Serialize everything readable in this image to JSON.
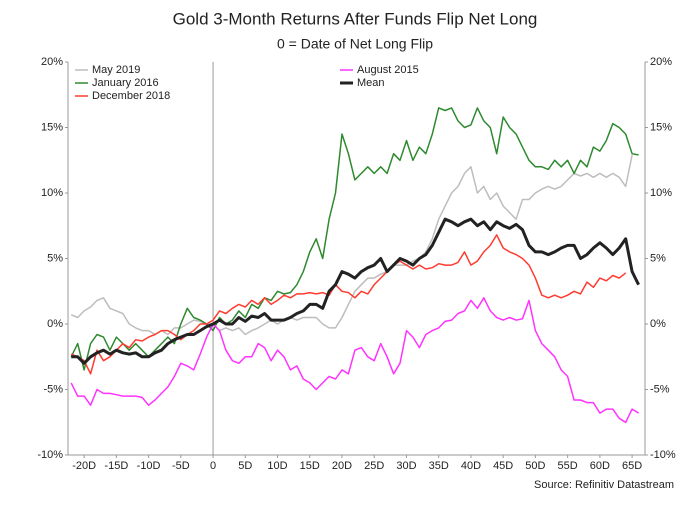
{
  "chart_data": {
    "type": "line",
    "title": "Gold 3-Month Returns After Funds Flip Net Long",
    "subtitle": "0 = Date of Net Long Flip",
    "source": "Source: Refinitiv Datastream",
    "x": [
      -22,
      -21,
      -20,
      -19,
      -18,
      -17,
      -16,
      -15,
      -14,
      -13,
      -12,
      -11,
      -10,
      -9,
      -8,
      -7,
      -6,
      -5,
      -4,
      -3,
      -2,
      -1,
      0,
      1,
      2,
      3,
      4,
      5,
      6,
      7,
      8,
      9,
      10,
      11,
      12,
      13,
      14,
      15,
      16,
      17,
      18,
      19,
      20,
      21,
      22,
      23,
      24,
      25,
      26,
      27,
      28,
      29,
      30,
      31,
      32,
      33,
      34,
      35,
      36,
      37,
      38,
      39,
      40,
      41,
      42,
      43,
      44,
      45,
      46,
      47,
      48,
      49,
      50,
      51,
      52,
      53,
      54,
      55,
      56,
      57,
      58,
      59,
      60,
      61,
      62,
      63,
      64,
      65,
      66
    ],
    "series": [
      {
        "name": "May 2019",
        "color": "#bdbdbd",
        "width": 1.5,
        "values": [
          0.7,
          0.5,
          1.0,
          1.3,
          1.8,
          2.0,
          1.2,
          1.0,
          0.8,
          0,
          -0.3,
          -0.5,
          -0.5,
          -0.8,
          -0.5,
          -0.8,
          -0.3,
          -0.3,
          0,
          0.3,
          0.2,
          0,
          0,
          -0.5,
          -0.3,
          -0.5,
          -0.3,
          -0.8,
          -0.5,
          -0.3,
          0,
          0.3,
          0,
          0.3,
          0.5,
          0.3,
          0.5,
          0.5,
          0.5,
          0,
          -0.3,
          -0.3,
          0.5,
          1.5,
          2.5,
          3,
          3.5,
          3.5,
          3.8,
          4,
          4.5,
          4.5,
          4.5,
          4.8,
          5,
          5.5,
          6.5,
          8,
          9,
          10,
          10.5,
          11.5,
          12,
          10,
          10.5,
          9.5,
          10,
          9,
          8.5,
          8,
          9.5,
          9.5,
          10,
          10.3,
          10.5,
          10.3,
          10.5,
          11,
          11.5,
          11.3,
          11.5,
          11.2,
          11.5,
          11.2,
          11.5,
          11.2,
          10.5,
          12.9,
          null
        ]
      },
      {
        "name": "January 2016",
        "color": "#2e8a2e",
        "width": 1.5,
        "values": [
          -2.5,
          -1.5,
          -3.5,
          -1.5,
          -0.8,
          -1.0,
          -2,
          -1,
          -1.5,
          -2,
          -1.5,
          -2,
          -2.5,
          -2,
          -1.5,
          -1,
          -1.5,
          0,
          1.2,
          0.5,
          0.3,
          0,
          -0.5,
          0.5,
          0,
          0.3,
          1,
          0.5,
          1.5,
          1.2,
          2,
          1.8,
          2.5,
          2.3,
          2.4,
          3,
          4,
          5.5,
          6.5,
          5,
          8,
          10,
          14.5,
          13,
          11,
          11.5,
          12,
          11.5,
          12,
          11.5,
          13,
          12.5,
          14,
          12.5,
          13.5,
          13,
          14.5,
          16.5,
          16.3,
          16.5,
          15.5,
          15,
          15.2,
          16.5,
          15.5,
          15,
          13,
          15.8,
          15,
          14.5,
          13.5,
          12.5,
          12,
          12,
          11.8,
          12.5,
          12,
          12.5,
          11.5,
          12.5,
          12,
          13.5,
          13.2,
          14,
          15.3,
          15,
          14.5,
          13,
          12.9
        ]
      },
      {
        "name": "Mean",
        "color": "#222222",
        "width": 3,
        "values": [
          -2.5,
          -2.5,
          -3,
          -2.5,
          -2.2,
          -2,
          -2.3,
          -2,
          -2.2,
          -2.3,
          -2.2,
          -2.5,
          -2.5,
          -2.2,
          -2,
          -1.5,
          -1.2,
          -1,
          -0.8,
          -0.8,
          -0.5,
          -0.2,
          0,
          0.3,
          0,
          0,
          0.5,
          0.2,
          0.6,
          0.5,
          0.8,
          0.3,
          0.3,
          0.3,
          0.5,
          0.8,
          1,
          1.5,
          1.5,
          1.2,
          2.5,
          3,
          4,
          3.8,
          3.5,
          4,
          4.3,
          4.5,
          5,
          4,
          4.5,
          5,
          4.8,
          4.5,
          5,
          5.3,
          6,
          7,
          8,
          7.8,
          7.5,
          7.8,
          8,
          7.5,
          7.8,
          7.2,
          7.8,
          7.5,
          7.3,
          7.6,
          7.2,
          6,
          5.5,
          5.5,
          5.3,
          5.5,
          5.8,
          6,
          6,
          5,
          5.3,
          5.8,
          6.2,
          5.8,
          5.3,
          5.8,
          6.5,
          4,
          3
        ]
      },
      {
        "name": "December 2018",
        "color": "#ff3b30",
        "width": 1.5,
        "values": [
          -2.3,
          -2.5,
          -2.8,
          -3.8,
          -2,
          -2.8,
          -2.5,
          -2,
          -1.5,
          -1.8,
          -1.2,
          -1.3,
          -1,
          -0.8,
          -0.5,
          -0.5,
          -0.8,
          -1.2,
          -0.8,
          -0.5,
          0,
          0,
          0.3,
          1,
          0.8,
          1.2,
          1.5,
          1.3,
          1.8,
          1.5,
          2,
          1.5,
          1.8,
          2.2,
          2.0,
          2.3,
          2.3,
          2.4,
          2.3,
          2.4,
          2.2,
          3.0,
          2.5,
          2.4,
          2.0,
          2.5,
          2.3,
          3,
          3.5,
          4.0,
          4.5,
          4.8,
          4.5,
          4.2,
          4.5,
          4.2,
          4.3,
          4.6,
          4.5,
          4.5,
          4.7,
          5.5,
          4.5,
          4.8,
          5.5,
          6,
          6.8,
          5.8,
          5.5,
          5.3,
          5.0,
          4.5,
          3.5,
          2.2,
          2.0,
          2.2,
          2.0,
          2.2,
          2.5,
          2.3,
          3.2,
          2.8,
          3.5,
          3.3,
          3.7,
          3.5,
          3.9,
          null,
          null
        ]
      },
      {
        "name": "August 2015",
        "color": "#ff33ff",
        "width": 1.5,
        "values": [
          -4.5,
          -5.5,
          -5.5,
          -6.2,
          -5.0,
          -5.3,
          -5.3,
          -5.4,
          -5.5,
          -5.5,
          -5.5,
          -5.6,
          -6.2,
          -5.8,
          -5.3,
          -4.8,
          -4.0,
          -3.0,
          -3.2,
          -3.5,
          -2.3,
          -1.0,
          0,
          -0.5,
          -2,
          -2.8,
          -3.0,
          -2.5,
          -2.5,
          -1.5,
          -1.8,
          -2.8,
          -2.0,
          -2.5,
          -3.5,
          -3.2,
          -4.2,
          -4.5,
          -5,
          -4.5,
          -4.0,
          -4.2,
          -3.5,
          -3.8,
          -2,
          -1.8,
          -2.5,
          -2.8,
          -1.5,
          -2.5,
          -3.8,
          -3,
          -0.5,
          -1,
          -1.8,
          -0.8,
          -0.5,
          -0.3,
          0.2,
          0.3,
          0.8,
          1,
          1.8,
          1.2,
          2.0,
          1.0,
          0.5,
          0.3,
          0.5,
          0.3,
          0.4,
          1.8,
          -0.5,
          -1.5,
          -2,
          -2.5,
          -3.5,
          -4,
          -5.8,
          -5.8,
          -6.0,
          -6.0,
          -6.8,
          -6.5,
          -6.5,
          -7.2,
          -7.5,
          -6.5,
          -6.8
        ]
      }
    ],
    "xlim": [
      -22.5,
      67
    ],
    "xticks": [
      {
        "value": -20,
        "label": "-20D"
      },
      {
        "value": -15,
        "label": "-15D"
      },
      {
        "value": -10,
        "label": "-10D"
      },
      {
        "value": -5,
        "label": "-5D"
      },
      {
        "value": 0,
        "label": "0"
      },
      {
        "value": 5,
        "label": "5D"
      },
      {
        "value": 10,
        "label": "10D"
      },
      {
        "value": 15,
        "label": "15D"
      },
      {
        "value": 20,
        "label": "20D"
      },
      {
        "value": 25,
        "label": "25D"
      },
      {
        "value": 30,
        "label": "30D"
      },
      {
        "value": 35,
        "label": "35D"
      },
      {
        "value": 40,
        "label": "40D"
      },
      {
        "value": 45,
        "label": "45D"
      },
      {
        "value": 50,
        "label": "50D"
      },
      {
        "value": 55,
        "label": "55D"
      },
      {
        "value": 60,
        "label": "60D"
      },
      {
        "value": 65,
        "label": "65D"
      }
    ],
    "ylim": [
      -10,
      20
    ],
    "yticks": [
      {
        "value": -10,
        "label": "-10%"
      },
      {
        "value": -5,
        "label": "-5%"
      },
      {
        "value": 0,
        "label": "0%"
      },
      {
        "value": 5,
        "label": "5%"
      },
      {
        "value": 10,
        "label": "10%"
      },
      {
        "value": 15,
        "label": "15%"
      },
      {
        "value": 20,
        "label": "20%"
      }
    ],
    "y2lim": [
      -10,
      20
    ],
    "y2ticks": [
      {
        "value": -10,
        "label": "-10%"
      },
      {
        "value": -5,
        "label": "-5%"
      },
      {
        "value": 0,
        "label": "0%"
      },
      {
        "value": 5,
        "label": "5%"
      },
      {
        "value": 10,
        "label": "10%"
      },
      {
        "value": 15,
        "label": "15%"
      },
      {
        "value": 20,
        "label": "20%"
      }
    ],
    "vline": 0
  }
}
